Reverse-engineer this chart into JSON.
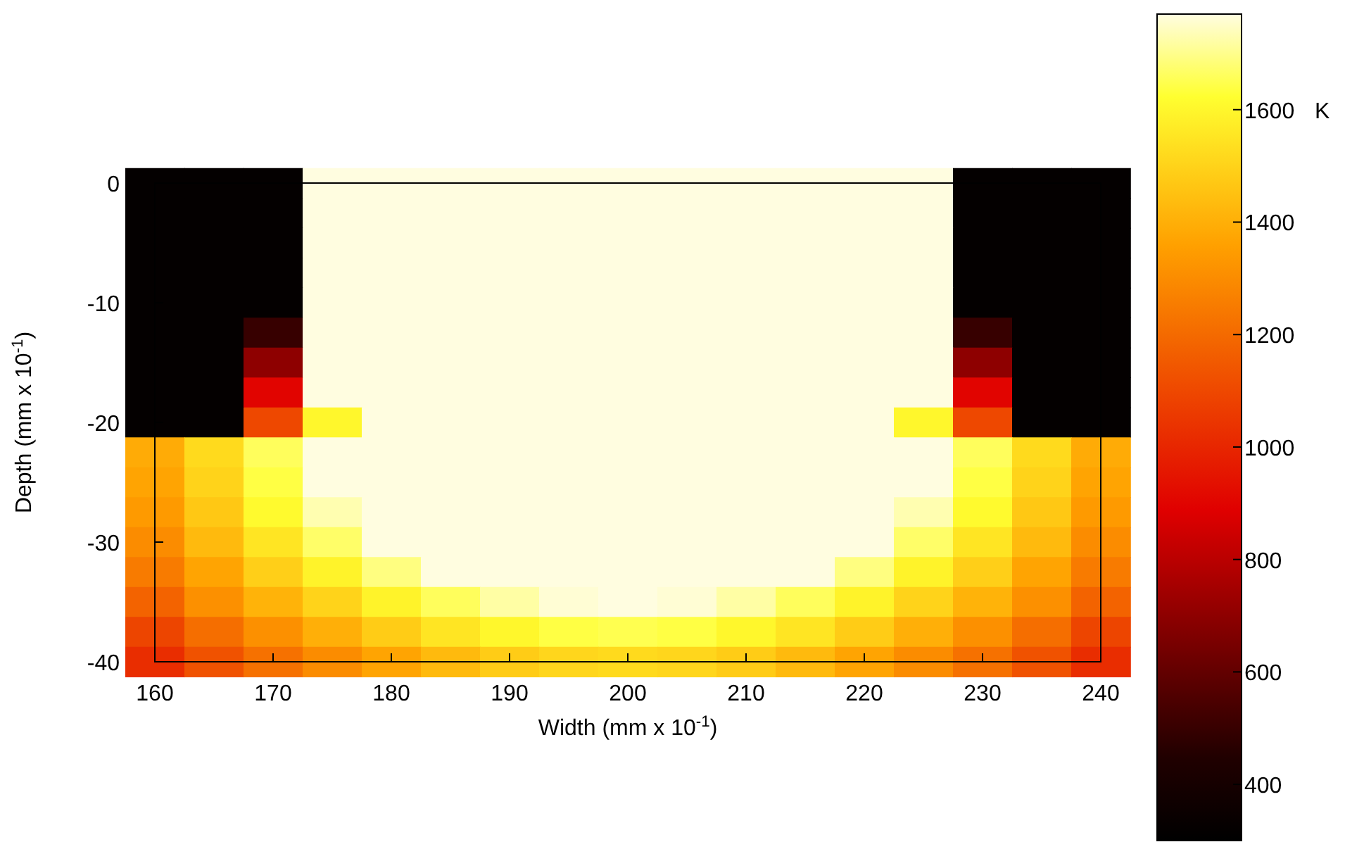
{
  "chart_data": {
    "type": "heatmap",
    "xlabel": "Width (mm x 10$^{-1}$)",
    "ylabel": "Depth (mm x 10$^{-1}$)",
    "clabel": "K",
    "categories": [
      "160",
      null,
      "170",
      null,
      "180",
      null,
      "190",
      null,
      "200",
      null,
      "210",
      null,
      "220",
      null,
      "230",
      null,
      "240"
    ],
    "y_categories": [
      "0",
      null,
      null,
      null,
      "-10",
      null,
      null,
      null,
      "-20",
      null,
      null,
      null,
      "-30",
      null,
      null,
      null,
      "-40"
    ],
    "clim": [
      300,
      1770
    ],
    "cticks": [
      400,
      600,
      800,
      1000,
      1200,
      1400,
      1600
    ],
    "cells": [
      [
        320,
        320,
        320,
        1770,
        1770,
        1770,
        1770,
        1770,
        1770,
        1770,
        1770,
        1770,
        1770,
        1770,
        320,
        320,
        320
      ],
      [
        320,
        320,
        320,
        1770,
        1770,
        1770,
        1770,
        1770,
        1770,
        1770,
        1770,
        1770,
        1770,
        1770,
        320,
        320,
        320
      ],
      [
        320,
        320,
        320,
        1770,
        1770,
        1770,
        1770,
        1770,
        1770,
        1770,
        1770,
        1770,
        1770,
        1770,
        320,
        320,
        320
      ],
      [
        320,
        320,
        320,
        1770,
        1770,
        1770,
        1770,
        1770,
        1770,
        1770,
        1770,
        1770,
        1770,
        1770,
        320,
        320,
        320
      ],
      [
        320,
        320,
        320,
        1770,
        1770,
        1770,
        1770,
        1770,
        1770,
        1770,
        1770,
        1770,
        1770,
        1770,
        320,
        320,
        320
      ],
      [
        320,
        320,
        500,
        1770,
        1770,
        1770,
        1770,
        1770,
        1770,
        1770,
        1770,
        1770,
        1770,
        1770,
        500,
        320,
        320
      ],
      [
        320,
        320,
        700,
        1770,
        1770,
        1770,
        1770,
        1770,
        1770,
        1770,
        1770,
        1770,
        1770,
        1770,
        700,
        320,
        320
      ],
      [
        320,
        320,
        900,
        1770,
        1770,
        1770,
        1770,
        1770,
        1770,
        1770,
        1770,
        1770,
        1770,
        1770,
        900,
        320,
        320
      ],
      [
        320,
        320,
        1100,
        1600,
        1770,
        1770,
        1770,
        1770,
        1770,
        1770,
        1770,
        1770,
        1770,
        1600,
        1100,
        320,
        320
      ],
      [
        1390,
        1520,
        1660,
        1770,
        1770,
        1770,
        1770,
        1770,
        1770,
        1770,
        1770,
        1770,
        1770,
        1770,
        1660,
        1520,
        1390
      ],
      [
        1370,
        1500,
        1640,
        1770,
        1770,
        1770,
        1770,
        1770,
        1770,
        1770,
        1770,
        1770,
        1770,
        1770,
        1640,
        1500,
        1370
      ],
      [
        1340,
        1470,
        1610,
        1730,
        1770,
        1770,
        1770,
        1770,
        1770,
        1770,
        1770,
        1770,
        1770,
        1730,
        1610,
        1470,
        1340
      ],
      [
        1300,
        1430,
        1550,
        1670,
        1770,
        1770,
        1770,
        1770,
        1770,
        1770,
        1770,
        1770,
        1770,
        1670,
        1550,
        1430,
        1300
      ],
      [
        1250,
        1370,
        1490,
        1590,
        1690,
        1770,
        1770,
        1770,
        1770,
        1770,
        1770,
        1770,
        1690,
        1590,
        1490,
        1370,
        1250
      ],
      [
        1180,
        1310,
        1410,
        1500,
        1590,
        1660,
        1720,
        1760,
        1770,
        1760,
        1720,
        1660,
        1590,
        1500,
        1410,
        1310,
        1180
      ],
      [
        1090,
        1210,
        1310,
        1400,
        1480,
        1550,
        1600,
        1640,
        1650,
        1640,
        1600,
        1550,
        1480,
        1400,
        1310,
        1210,
        1090
      ],
      [
        1020,
        1130,
        1220,
        1300,
        1370,
        1430,
        1480,
        1510,
        1520,
        1510,
        1480,
        1430,
        1370,
        1300,
        1220,
        1130,
        1020
      ]
    ]
  }
}
